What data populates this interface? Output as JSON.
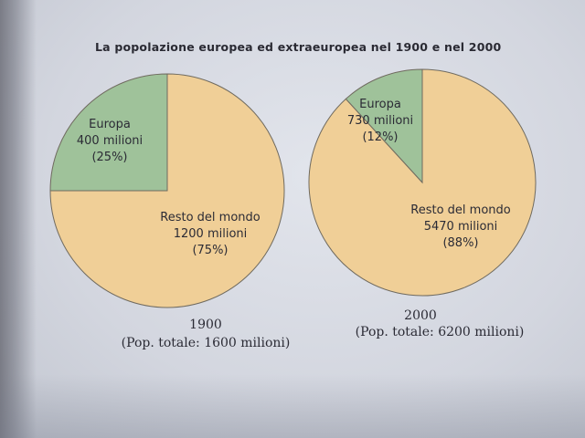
{
  "title": "La popolazione europea ed extraeuropea nel 1900 e nel 2000",
  "colors": {
    "europa": "#9fc29a",
    "resto": "#f0cf97",
    "outline": "#6f6a5f"
  },
  "chart_data": [
    {
      "type": "pie",
      "year": "1900",
      "total_label": "(Pop. totale: 1600 milioni)",
      "slices": [
        {
          "name": "Europa",
          "value": 400,
          "value_label": "400 milioni",
          "percent": 25,
          "percent_label": "(25%)",
          "color": "#9fc29a"
        },
        {
          "name": "Resto del mondo",
          "value": 1200,
          "value_label": "1200 milioni",
          "percent": 75,
          "percent_label": "(75%)",
          "color": "#f0cf97"
        }
      ]
    },
    {
      "type": "pie",
      "year": "2000",
      "total_label": "(Pop. totale: 6200 milioni)",
      "slices": [
        {
          "name": "Europa",
          "value": 730,
          "value_label": "730 milioni",
          "percent": 12,
          "percent_label": "(12%)",
          "color": "#9fc29a"
        },
        {
          "name": "Resto del mondo",
          "value": 5470,
          "value_label": "5470 milioni",
          "percent": 88,
          "percent_label": "(88%)",
          "color": "#f0cf97"
        }
      ]
    }
  ]
}
